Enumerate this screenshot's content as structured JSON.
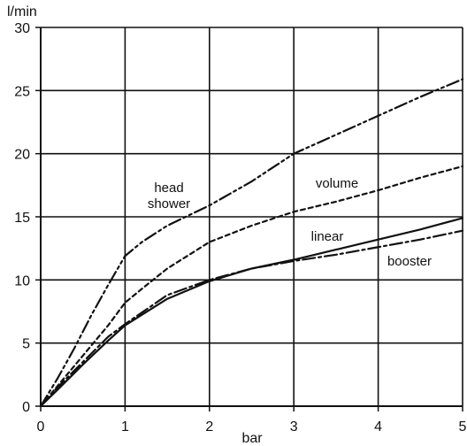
{
  "chart_data": {
    "type": "line",
    "xlabel": "bar",
    "ylabel": "l/min",
    "xlim": [
      0,
      5
    ],
    "ylim": [
      0,
      30
    ],
    "x_ticks": [
      0,
      1,
      2,
      3,
      4,
      5
    ],
    "y_ticks": [
      0,
      5,
      10,
      15,
      20,
      25,
      30
    ],
    "grid": true,
    "series": [
      {
        "name": "linear",
        "label_lines": [
          "linear"
        ],
        "style": "solid",
        "color": "#111111",
        "points": [
          {
            "x": 0,
            "y": 0
          },
          {
            "x": 0.2,
            "y": 1.3
          },
          {
            "x": 0.5,
            "y": 3.3
          },
          {
            "x": 0.8,
            "y": 5.2
          },
          {
            "x": 1.0,
            "y": 6.4
          },
          {
            "x": 1.5,
            "y": 8.5
          },
          {
            "x": 2.0,
            "y": 9.9
          },
          {
            "x": 2.5,
            "y": 10.9
          },
          {
            "x": 3.0,
            "y": 11.6
          },
          {
            "x": 3.5,
            "y": 12.4
          },
          {
            "x": 4.0,
            "y": 13.2
          },
          {
            "x": 4.5,
            "y": 14.0
          },
          {
            "x": 5.0,
            "y": 14.9
          }
        ]
      },
      {
        "name": "booster",
        "label_lines": [
          "booster"
        ],
        "style": "dashdot",
        "color": "#111111",
        "points": [
          {
            "x": 0,
            "y": 0
          },
          {
            "x": 0.2,
            "y": 1.5
          },
          {
            "x": 0.5,
            "y": 3.5
          },
          {
            "x": 0.8,
            "y": 5.5
          },
          {
            "x": 1.0,
            "y": 6.5
          },
          {
            "x": 1.5,
            "y": 8.8
          },
          {
            "x": 2.0,
            "y": 10.0
          },
          {
            "x": 2.5,
            "y": 10.9
          },
          {
            "x": 3.0,
            "y": 11.5
          },
          {
            "x": 3.5,
            "y": 12.0
          },
          {
            "x": 4.0,
            "y": 12.6
          },
          {
            "x": 4.5,
            "y": 13.2
          },
          {
            "x": 5.0,
            "y": 13.9
          }
        ]
      },
      {
        "name": "volume",
        "label_lines": [
          "volume"
        ],
        "style": "dashed",
        "color": "#111111",
        "points": [
          {
            "x": 0,
            "y": 0
          },
          {
            "x": 0.2,
            "y": 1.6
          },
          {
            "x": 0.5,
            "y": 4.0
          },
          {
            "x": 0.8,
            "y": 6.4
          },
          {
            "x": 1.0,
            "y": 8.2
          },
          {
            "x": 1.2,
            "y": 9.3
          },
          {
            "x": 1.5,
            "y": 10.9
          },
          {
            "x": 2.0,
            "y": 13.0
          },
          {
            "x": 2.5,
            "y": 14.3
          },
          {
            "x": 3.0,
            "y": 15.4
          },
          {
            "x": 3.5,
            "y": 16.2
          },
          {
            "x": 4.0,
            "y": 17.1
          },
          {
            "x": 4.5,
            "y": 18.1
          },
          {
            "x": 5.0,
            "y": 19.0
          }
        ]
      },
      {
        "name": "head shower",
        "label_lines": [
          "head",
          "shower"
        ],
        "style": "dashdotdot",
        "color": "#111111",
        "points": [
          {
            "x": 0,
            "y": 0
          },
          {
            "x": 0.2,
            "y": 2.2
          },
          {
            "x": 0.4,
            "y": 4.6
          },
          {
            "x": 0.6,
            "y": 7.2
          },
          {
            "x": 0.8,
            "y": 9.6
          },
          {
            "x": 1.0,
            "y": 11.9
          },
          {
            "x": 1.2,
            "y": 13.0
          },
          {
            "x": 1.5,
            "y": 14.3
          },
          {
            "x": 2.0,
            "y": 15.9
          },
          {
            "x": 2.5,
            "y": 17.8
          },
          {
            "x": 3.0,
            "y": 20.0
          },
          {
            "x": 3.5,
            "y": 21.5
          },
          {
            "x": 4.0,
            "y": 23.0
          },
          {
            "x": 4.5,
            "y": 24.5
          },
          {
            "x": 5.0,
            "y": 25.9
          }
        ]
      }
    ]
  }
}
